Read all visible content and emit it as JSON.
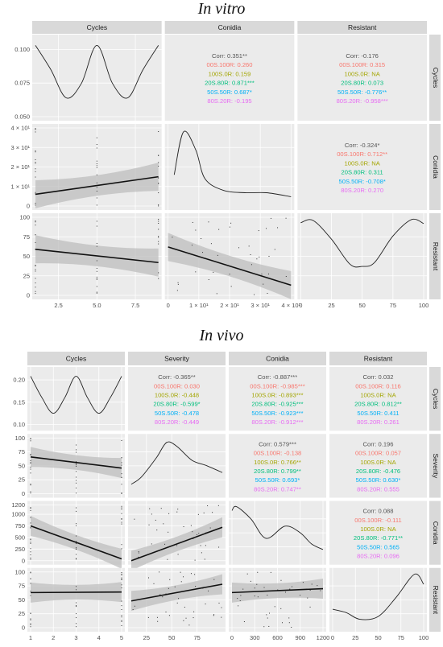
{
  "chart_data": [
    {
      "type": "pairs-matrix",
      "title": "In vitro",
      "variables": [
        "Cycles",
        "Conidia",
        "Resistant"
      ],
      "axes": {
        "Cycles": {
          "range": [
            1,
            9
          ],
          "ticks": [
            2.5,
            5.0,
            7.5
          ],
          "tick_labels": [
            "2.5",
            "5.0",
            "7.5"
          ]
        },
        "Conidia": {
          "range": [
            0,
            4
          ],
          "ticks": [
            0,
            1,
            2,
            3,
            4
          ],
          "tick_labels": [
            "0",
            "1 × 10¹",
            "2 × 10¹",
            "3 × 10¹",
            "4 × 10¹"
          ]
        },
        "Resistant": {
          "range": [
            0,
            100
          ],
          "ticks": [
            0,
            25,
            50,
            75,
            100
          ],
          "tick_labels": [
            "0",
            "25",
            "50",
            "75",
            "100"
          ]
        }
      },
      "density_y_ticks": {
        "values": [
          0.05,
          0.075,
          0.1
        ],
        "labels": [
          "0.050",
          "0.075",
          "0.100"
        ],
        "range": [
          0.05,
          0.108
        ]
      },
      "correlations": [
        {
          "row": "Cycles",
          "col": "Conidia",
          "lines": [
            "Corr: 0.351**",
            "00S.100R: 0.260",
            "100S.0R: 0.159",
            "20S.80R: 0.871***",
            "50S.50R: 0.687*",
            "80S.20R: -0.195"
          ]
        },
        {
          "row": "Cycles",
          "col": "Resistant",
          "lines": [
            "Corr: -0.176",
            "00S.100R: 0.315",
            "100S.0R: NA",
            "20S.80R: 0.073",
            "50S.50R: -0.776**",
            "80S.20R: -0.958***"
          ]
        },
        {
          "row": "Conidia",
          "col": "Resistant",
          "lines": [
            "Corr: -0.324*",
            "00S.100R: 0.712**",
            "100S.0R: NA",
            "20S.80R: 0.311",
            "50S.50R: -0.708*",
            "80S.20R: 0.270"
          ]
        }
      ],
      "densities": {
        "Cycles": [
          [
            1,
            0.103
          ],
          [
            2,
            0.085
          ],
          [
            3,
            0.064
          ],
          [
            4,
            0.075
          ],
          [
            5,
            0.103
          ],
          [
            6,
            0.075
          ],
          [
            7,
            0.064
          ],
          [
            8,
            0.085
          ],
          [
            9,
            0.103
          ]
        ],
        "Conidia": [
          [
            0.2,
            0.4
          ],
          [
            0.5,
            0.95
          ],
          [
            0.9,
            0.72
          ],
          [
            1.2,
            0.35
          ],
          [
            1.8,
            0.2
          ],
          [
            2.5,
            0.17
          ],
          [
            3.2,
            0.17
          ],
          [
            4.0,
            0.12
          ]
        ],
        "Resistant": [
          [
            0,
            0.93
          ],
          [
            10,
            0.96
          ],
          [
            25,
            0.72
          ],
          [
            40,
            0.4
          ],
          [
            50,
            0.37
          ],
          [
            60,
            0.42
          ],
          [
            75,
            0.76
          ],
          [
            90,
            0.97
          ],
          [
            100,
            0.92
          ]
        ]
      },
      "fits": [
        {
          "row": "Conidia",
          "col": "Cycles",
          "y_at_min": 0.6,
          "y_at_max": 1.5
        },
        {
          "row": "Resistant",
          "col": "Cycles",
          "y_at_min": 59,
          "y_at_max": 42
        },
        {
          "row": "Resistant",
          "col": "Conidia",
          "y_at_min": 62,
          "y_at_max": 13
        }
      ]
    },
    {
      "type": "pairs-matrix",
      "title": "In vivo",
      "variables": [
        "Cycles",
        "Severity",
        "Conidia",
        "Resistant"
      ],
      "axes": {
        "Cycles": {
          "range": [
            1,
            5
          ],
          "ticks": [
            1,
            2,
            3,
            4,
            5
          ],
          "tick_labels": [
            "1",
            "2",
            "3",
            "4",
            "5"
          ]
        },
        "Severity": {
          "range": [
            0,
            100
          ],
          "ticks": [
            0,
            25,
            50,
            75,
            100
          ],
          "tick_labels": [
            "0",
            "25",
            "50",
            "75",
            "100"
          ],
          "x_range": [
            10,
            100
          ],
          "x_ticks": [
            25,
            50,
            75
          ],
          "x_tick_labels": [
            "25",
            "50",
            "75"
          ]
        },
        "Conidia": {
          "range": [
            0,
            1200
          ],
          "ticks": [
            0,
            250,
            500,
            750,
            1000,
            1200
          ],
          "tick_labels": [
            "0",
            "250",
            "500",
            "750",
            "1000",
            "1200"
          ],
          "x_ticks": [
            0,
            300,
            600,
            900,
            1200
          ],
          "x_tick_labels": [
            "0",
            "300",
            "600",
            "900",
            "1200"
          ]
        },
        "Resistant": {
          "range": [
            0,
            100
          ],
          "ticks": [
            0,
            25,
            50,
            75,
            100
          ],
          "tick_labels": [
            "0",
            "25",
            "50",
            "75",
            "100"
          ]
        }
      },
      "density_y_ticks": {
        "values": [
          0.1,
          0.15,
          0.2
        ],
        "labels": [
          "0.10",
          "0.15",
          "0.20"
        ],
        "range": [
          0.095,
          0.22
        ]
      },
      "correlations": [
        {
          "row": "Cycles",
          "col": "Severity",
          "lines": [
            "Corr: -0.365**",
            "00S.100R: 0.030",
            "100S.0R: -0.448",
            "20S.80R: -0.599*",
            "50S.50R: -0.478",
            "80S.20R: -0.449"
          ]
        },
        {
          "row": "Cycles",
          "col": "Conidia",
          "lines": [
            "Corr: -0.887***",
            "00S.100R: -0.985***",
            "100S.0R: -0.893***",
            "20S.80R: -0.925***",
            "50S.50R: -0.923***",
            "80S.20R: -0.912***"
          ]
        },
        {
          "row": "Cycles",
          "col": "Resistant",
          "lines": [
            "Corr: 0.032",
            "00S.100R: 0.116",
            "100S.0R: NA",
            "20S.80R: 0.812**",
            "50S.50R: 0.411",
            "80S.20R: 0.261"
          ]
        },
        {
          "row": "Severity",
          "col": "Conidia",
          "lines": [
            "Corr: 0.579***",
            "00S.100R: -0.138",
            "100S.0R: 0.766**",
            "20S.80R: 0.799**",
            "50S.50R: 0.693*",
            "80S.20R: 0.747**"
          ]
        },
        {
          "row": "Severity",
          "col": "Resistant",
          "lines": [
            "Corr: 0.196",
            "00S.100R: 0.057",
            "100S.0R: NA",
            "20S.80R: -0.476",
            "50S.50R: 0.630*",
            "80S.20R: 0.555"
          ]
        },
        {
          "row": "Conidia",
          "col": "Resistant",
          "lines": [
            "Corr: 0.088",
            "00S.100R: -0.111",
            "100S.0R: NA",
            "20S.80R: -0.771**",
            "50S.50R: 0.565",
            "80S.20R: 0.096"
          ]
        }
      ],
      "densities": {
        "Cycles": [
          [
            1,
            0.208
          ],
          [
            1.5,
            0.16
          ],
          [
            2,
            0.125
          ],
          [
            2.5,
            0.16
          ],
          [
            3,
            0.208
          ],
          [
            3.5,
            0.16
          ],
          [
            4,
            0.125
          ],
          [
            4.5,
            0.16
          ],
          [
            5,
            0.208
          ]
        ],
        "Severity": [
          [
            10,
            0.17
          ],
          [
            20,
            0.3
          ],
          [
            35,
            0.65
          ],
          [
            45,
            0.92
          ],
          [
            55,
            0.85
          ],
          [
            70,
            0.6
          ],
          [
            85,
            0.5
          ],
          [
            100,
            0.38
          ]
        ],
        "Conidia": [
          [
            0,
            0.9
          ],
          [
            60,
            0.97
          ],
          [
            250,
            0.75
          ],
          [
            450,
            0.4
          ],
          [
            700,
            0.62
          ],
          [
            900,
            0.5
          ],
          [
            1050,
            0.3
          ],
          [
            1200,
            0.2
          ]
        ],
        "Resistant": [
          [
            0,
            0.33
          ],
          [
            15,
            0.27
          ],
          [
            30,
            0.15
          ],
          [
            50,
            0.2
          ],
          [
            70,
            0.55
          ],
          [
            90,
            0.96
          ],
          [
            100,
            0.78
          ]
        ]
      },
      "fits": [
        {
          "row": "Severity",
          "col": "Cycles",
          "y_at_min": 66,
          "y_at_max": 46
        },
        {
          "row": "Conidia",
          "col": "Cycles",
          "y_at_min": 750,
          "y_at_max": 40
        },
        {
          "row": "Resistant",
          "col": "Cycles",
          "y_at_min": 63,
          "y_at_max": 64
        },
        {
          "row": "Conidia",
          "col": "Severity",
          "y_at_min": 0,
          "y_at_max": 720
        },
        {
          "row": "Resistant",
          "col": "Severity",
          "y_at_min": 48,
          "y_at_max": 78
        },
        {
          "row": "Resistant",
          "col": "Conidia",
          "y_at_min": 63,
          "y_at_max": 70
        }
      ]
    }
  ],
  "group_colors": [
    "#555555",
    "#f8766d",
    "#a3a500",
    "#00bf7d",
    "#00b0f6",
    "#e76bf3"
  ]
}
